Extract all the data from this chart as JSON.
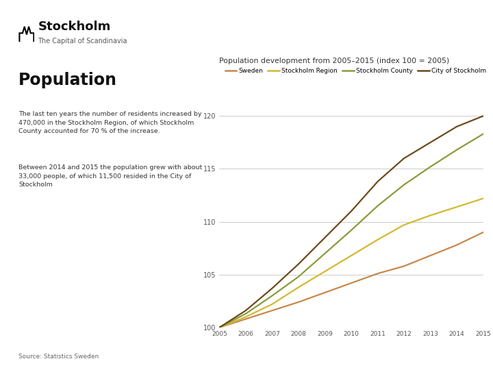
{
  "title": "Population development from 2005–2015 (index 100 = 2005)",
  "years": [
    2005,
    2006,
    2007,
    2008,
    2009,
    2010,
    2011,
    2012,
    2013,
    2014,
    2015
  ],
  "series": {
    "Sweden": [
      100,
      100.8,
      101.6,
      102.4,
      103.3,
      104.2,
      105.1,
      105.8,
      106.8,
      107.8,
      109.0
    ],
    "Stockholm Region": [
      100,
      101.0,
      102.2,
      103.8,
      105.3,
      106.8,
      108.3,
      109.7,
      110.6,
      111.4,
      112.2
    ],
    "Stockholm County": [
      100,
      101.3,
      103.0,
      104.8,
      107.0,
      109.2,
      111.5,
      113.5,
      115.2,
      116.8,
      118.3
    ],
    "City of Stockholm": [
      100,
      101.6,
      103.7,
      106.0,
      108.5,
      111.0,
      113.8,
      116.0,
      117.5,
      119.0,
      120.0
    ]
  },
  "colors": {
    "Sweden": "#C8874A",
    "Stockholm Region": "#D4B830",
    "Stockholm County": "#8A9A3A",
    "City of Stockholm": "#6B4A1A"
  },
  "ylim": [
    100,
    121
  ],
  "yticks": [
    100,
    105,
    110,
    115,
    120
  ],
  "background_color": "#FFFFFF",
  "heading": "Population",
  "text1": "The last ten years the number of residents increased by\n470,000 in the Stockholm Region, of which Stockholm\nCounty accounted for 70 % of the increase.",
  "text2": "Between 2014 and 2015 the population grew with about\n33,000 people, of which 11,500 resided in the City of\nStockholm",
  "source": "Source: Statistics Sweden",
  "logo_subtitle": "The Capital of Scandinavia",
  "legend_order": [
    "Sweden",
    "Stockholm Region",
    "Stockholm County",
    "City of Stockholm"
  ]
}
